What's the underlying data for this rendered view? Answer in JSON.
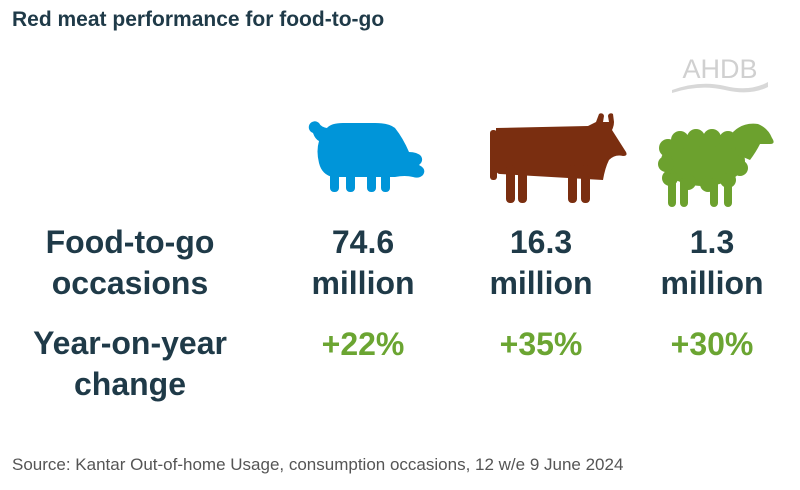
{
  "title": "Red meat performance for food-to-go",
  "logo_text": "AHDB",
  "rows": {
    "occasions_label": [
      "Food-to-go",
      "occasions"
    ],
    "change_label": [
      "Year-on-year",
      "change"
    ]
  },
  "items": [
    {
      "animal": "pig-icon",
      "color": "#0095d9",
      "value": "74.6",
      "unit": "million",
      "change": "+22%"
    },
    {
      "animal": "cow-icon",
      "color": "#7a2e10",
      "value": "16.3",
      "unit": "million",
      "change": "+35%"
    },
    {
      "animal": "sheep-icon",
      "color": "#6ca12e",
      "value": "1.3",
      "unit": "million",
      "change": "+30%"
    }
  ],
  "source": "Source: Kantar Out-of-home Usage, consumption occasions, 12 w/e 9 June 2024"
}
